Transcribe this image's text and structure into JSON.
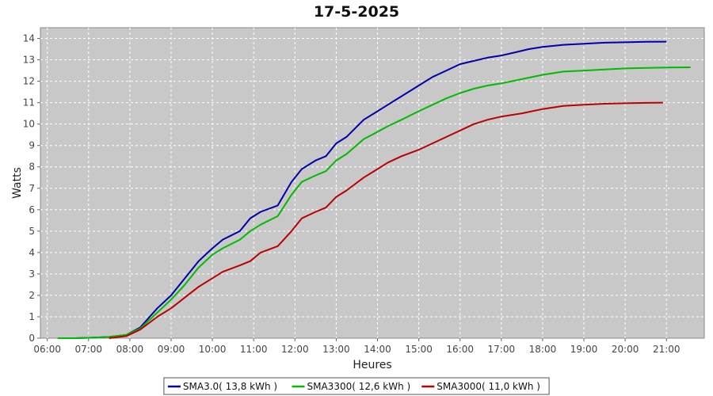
{
  "chart_data": {
    "type": "line",
    "title": "17-5-2025",
    "xlabel": "Heures",
    "ylabel": "Watts",
    "x_ticks": [
      "06:00",
      "07:00",
      "08:00",
      "09:00",
      "10:00",
      "11:00",
      "12:00",
      "13:00",
      "14:00",
      "15:00",
      "16:00",
      "17:00",
      "18:00",
      "19:00",
      "20:00",
      "21:00"
    ],
    "xlim": [
      "05:50",
      "21:55"
    ],
    "ylim": [
      0,
      14.5
    ],
    "y_ticks": [
      0,
      1,
      2,
      3,
      4,
      5,
      6,
      7,
      8,
      9,
      10,
      11,
      12,
      13,
      14
    ],
    "grid": true,
    "legend_position": "bottom",
    "background": "#c8c8c8",
    "series": [
      {
        "name": "SMA3.0( 13,8 kWh )",
        "color": "#0000aa",
        "x": [
          "06:40",
          "07:00",
          "07:30",
          "07:55",
          "08:15",
          "08:40",
          "09:00",
          "09:20",
          "09:40",
          "10:00",
          "10:15",
          "10:40",
          "10:55",
          "11:10",
          "11:35",
          "11:55",
          "12:10",
          "12:30",
          "12:45",
          "13:00",
          "13:15",
          "13:40",
          "13:55",
          "14:15",
          "14:35",
          "15:00",
          "15:20",
          "15:40",
          "16:00",
          "16:20",
          "16:40",
          "17:00",
          "17:20",
          "17:40",
          "18:00",
          "18:30",
          "19:00",
          "19:30",
          "20:00",
          "20:30",
          "21:00"
        ],
        "y": [
          0.0,
          0.02,
          0.06,
          0.15,
          0.5,
          1.4,
          2.0,
          2.8,
          3.6,
          4.2,
          4.6,
          5.0,
          5.6,
          5.9,
          6.2,
          7.3,
          7.9,
          8.3,
          8.5,
          9.1,
          9.4,
          10.2,
          10.5,
          10.9,
          11.3,
          11.8,
          12.2,
          12.5,
          12.8,
          12.95,
          13.1,
          13.2,
          13.35,
          13.5,
          13.6,
          13.7,
          13.75,
          13.8,
          13.82,
          13.84,
          13.85
        ]
      },
      {
        "name": "SMA3300( 12,6 kWh )",
        "color": "#00bb00",
        "x": [
          "06:15",
          "06:40",
          "07:00",
          "07:30",
          "07:55",
          "08:15",
          "08:40",
          "09:00",
          "09:20",
          "09:40",
          "10:00",
          "10:15",
          "10:40",
          "10:55",
          "11:10",
          "11:35",
          "11:55",
          "12:10",
          "12:30",
          "12:45",
          "13:00",
          "13:15",
          "13:40",
          "13:55",
          "14:15",
          "14:35",
          "15:00",
          "15:20",
          "15:40",
          "16:00",
          "16:20",
          "16:40",
          "17:00",
          "17:30",
          "18:00",
          "18:30",
          "19:00",
          "19:30",
          "20:00",
          "20:30",
          "21:00",
          "21:35"
        ],
        "y": [
          0.0,
          0.0,
          0.02,
          0.06,
          0.15,
          0.45,
          1.2,
          1.8,
          2.5,
          3.3,
          3.9,
          4.2,
          4.6,
          5.0,
          5.3,
          5.7,
          6.7,
          7.3,
          7.6,
          7.8,
          8.3,
          8.6,
          9.3,
          9.55,
          9.9,
          10.2,
          10.6,
          10.9,
          11.2,
          11.45,
          11.65,
          11.8,
          11.9,
          12.1,
          12.3,
          12.45,
          12.5,
          12.55,
          12.6,
          12.62,
          12.64,
          12.65
        ]
      },
      {
        "name": "SMA3000( 11,0 kWh )",
        "color": "#bb0000",
        "x": [
          "07:30",
          "07:55",
          "08:15",
          "08:40",
          "09:00",
          "09:20",
          "09:40",
          "10:00",
          "10:15",
          "10:40",
          "10:55",
          "11:10",
          "11:35",
          "11:55",
          "12:10",
          "12:30",
          "12:45",
          "13:00",
          "13:15",
          "13:40",
          "13:55",
          "14:15",
          "14:35",
          "15:00",
          "15:20",
          "15:40",
          "16:00",
          "16:20",
          "16:40",
          "17:00",
          "17:30",
          "18:00",
          "18:30",
          "19:00",
          "19:30",
          "20:00",
          "20:30",
          "20:55"
        ],
        "y": [
          0.0,
          0.1,
          0.4,
          1.0,
          1.4,
          1.9,
          2.4,
          2.8,
          3.1,
          3.4,
          3.6,
          4.0,
          4.3,
          5.0,
          5.6,
          5.9,
          6.1,
          6.6,
          6.9,
          7.5,
          7.8,
          8.2,
          8.5,
          8.8,
          9.1,
          9.4,
          9.7,
          10.0,
          10.2,
          10.35,
          10.5,
          10.7,
          10.85,
          10.9,
          10.95,
          10.97,
          10.99,
          11.0
        ]
      }
    ]
  }
}
